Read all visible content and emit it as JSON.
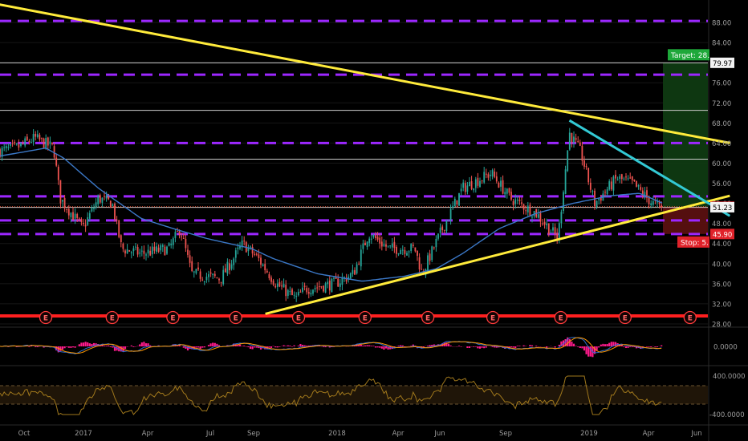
{
  "colors": {
    "background": "#000000",
    "axis_text": "#9b9b9b",
    "grid": "#161616",
    "candle_up": "#26a69a",
    "candle_down": "#ef5350",
    "moving_average": "#3b78c7",
    "trendline": "#ffeb3b",
    "wedge_line": "#33c9d4",
    "support_resistance": "#cccccc",
    "fib_dashed": "#9c27ff",
    "red_line": "#ff1f1f",
    "dotted_price": "#ff5a3a",
    "target_zone": "#0f3a12",
    "stop_zone": "#5a1010",
    "target_label": "#1ea83a",
    "stop_label": "#e0222a",
    "macd_line": "#2f6fd0",
    "signal_line": "#ff9800",
    "histogram": "#ff1a8c",
    "cci_line": "#a0781c",
    "cci_band": "#1f1508",
    "earnings_marker": "#ff3b3b"
  },
  "chart_data": {
    "type": "line",
    "ylim": [
      27,
      92
    ],
    "price_ticks": [
      "88.00",
      "84.00",
      "80.00",
      "76.00",
      "72.00",
      "68.00",
      "64.00",
      "60.00",
      "56.00",
      "52.00",
      "48.00",
      "44.00",
      "40.00",
      "36.00",
      "32.00",
      "28.00"
    ],
    "x_axis_labels": [
      "Oct",
      "2017",
      "Apr",
      "Jul",
      "Sep",
      "2018",
      "Apr",
      "Jun",
      "Sep",
      "2019",
      "Apr",
      "Jun"
    ],
    "horizontal_levels": [
      79.97,
      70.5,
      60.8,
      51.2
    ],
    "fib_levels": [
      88.3,
      77.6,
      64.0,
      53.4,
      48.6,
      45.9
    ],
    "red_level": 29.6,
    "current_price_dotted": 51.33,
    "price_labels": [
      {
        "text": "79.97",
        "price": 79.97,
        "style": "white"
      },
      {
        "text": "51.33",
        "price": 51.33,
        "style": "red"
      },
      {
        "text": "51.23",
        "price": 51.23,
        "style": "white"
      },
      {
        "text": "45.90",
        "price": 45.9,
        "style": "red"
      }
    ],
    "target_label": "Target: 28.",
    "stop_label": "Stop: 5.",
    "target_zone": [
      51.3,
      79.97
    ],
    "stop_zone": [
      45.9,
      51.3
    ],
    "trendlines": [
      {
        "name": "upper-downtrend",
        "from": [
          "2016-09-01",
          92.0
        ],
        "to": [
          "2019-06-25",
          64.0
        ],
        "color": "trendline"
      },
      {
        "name": "rising-support",
        "from": [
          "2017-09-20",
          30.0
        ],
        "to": [
          "2019-06-25",
          53.5
        ],
        "color": "trendline"
      },
      {
        "name": "wedge-top",
        "from": [
          "2018-11-15",
          68.5
        ],
        "to": [
          "2019-06-25",
          49.5
        ],
        "color": "wedge_line"
      }
    ],
    "price_anchors": [
      [
        "2016-09-01",
        62
      ],
      [
        "2016-10-10",
        63
      ],
      [
        "2016-11-05",
        65
      ],
      [
        "2016-12-01",
        63
      ],
      [
        "2016-12-10",
        53
      ],
      [
        "2017-01-10",
        47
      ],
      [
        "2017-02-01",
        53
      ],
      [
        "2017-02-20",
        52
      ],
      [
        "2017-03-05",
        43
      ],
      [
        "2017-04-01",
        42
      ],
      [
        "2017-05-10",
        43
      ],
      [
        "2017-05-25",
        47
      ],
      [
        "2017-06-10",
        38
      ],
      [
        "2017-07-20",
        37
      ],
      [
        "2017-08-20",
        44
      ],
      [
        "2017-09-10",
        41
      ],
      [
        "2017-10-05",
        36
      ],
      [
        "2017-11-01",
        33
      ],
      [
        "2017-11-15",
        35
      ],
      [
        "2017-12-25",
        36
      ],
      [
        "2018-01-20",
        38
      ],
      [
        "2018-02-10",
        46
      ],
      [
        "2018-03-10",
        43
      ],
      [
        "2018-04-15",
        43
      ],
      [
        "2018-04-25",
        38
      ],
      [
        "2018-05-20",
        46
      ],
      [
        "2018-06-20",
        55
      ],
      [
        "2018-07-30",
        58
      ],
      [
        "2018-08-25",
        53
      ],
      [
        "2018-09-30",
        50
      ],
      [
        "2018-10-30",
        45
      ],
      [
        "2018-11-15",
        66
      ],
      [
        "2018-12-01",
        62
      ],
      [
        "2018-12-20",
        52
      ],
      [
        "2019-01-20",
        57
      ],
      [
        "2019-02-10",
        56
      ],
      [
        "2019-03-10",
        52
      ],
      [
        "2019-03-25",
        51
      ],
      [
        "2019-04-10",
        53
      ],
      [
        "2019-04-25",
        51
      ]
    ],
    "ma_anchors": [
      [
        "2016-09-01",
        61
      ],
      [
        "2016-11-20",
        63
      ],
      [
        "2016-12-15",
        61
      ],
      [
        "2017-02-01",
        55
      ],
      [
        "2017-04-01",
        49
      ],
      [
        "2017-05-15",
        47
      ],
      [
        "2017-07-01",
        45
      ],
      [
        "2017-09-01",
        43
      ],
      [
        "2017-10-01",
        41
      ],
      [
        "2017-12-01",
        38
      ],
      [
        "2018-02-01",
        36.5
      ],
      [
        "2018-04-01",
        37.5
      ],
      [
        "2018-05-15",
        39
      ],
      [
        "2018-06-20",
        42
      ],
      [
        "2018-08-10",
        47
      ],
      [
        "2018-09-30",
        50
      ],
      [
        "2018-11-20",
        52
      ],
      [
        "2019-01-10",
        53.5
      ],
      [
        "2019-02-20",
        54
      ],
      [
        "2019-04-10",
        51
      ],
      [
        "2019-04-30",
        51.5
      ]
    ],
    "earnings_dates": [
      "2016-11-20",
      "2017-02-20",
      "2017-05-15",
      "2017-08-10",
      "2017-11-05",
      "2018-02-05",
      "2018-05-03",
      "2018-08-01",
      "2018-11-03",
      "2019-01-31",
      "2019-05-01"
    ],
    "macd_panel": {
      "tick": "0.0000"
    },
    "cci_panel": {
      "ticks": [
        "400.0000",
        "-400.0000"
      ]
    }
  }
}
